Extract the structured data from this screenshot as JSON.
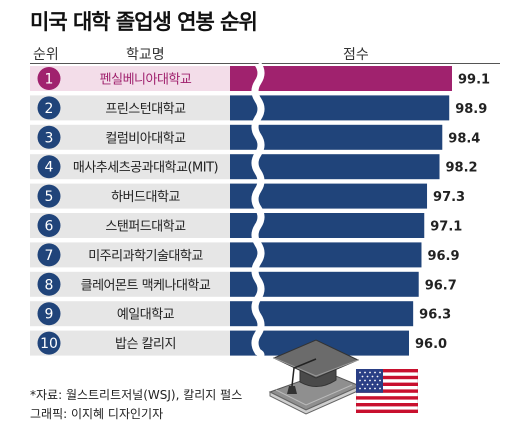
{
  "title": "미국 대학 졸업생 연봉 순위",
  "headers": {
    "rank": "순위",
    "school": "학교명",
    "score": "점수"
  },
  "colors": {
    "highlight": "#a0226e",
    "highlight_label_bg": "#f3dde9",
    "bar": "#20447a",
    "label_bg": "#e6e6e6",
    "rank_circle": "#20447a"
  },
  "chart_data": {
    "type": "bar",
    "orientation": "horizontal",
    "title": "미국 대학 졸업생 연봉 순위",
    "xlabel": "점수",
    "ylabel": "학교명",
    "axis_break": true,
    "categories": [
      "펜실베니아대학교",
      "프린스턴대학교",
      "컬럼비아대학교",
      "매사추세츠공과대학교(MIT)",
      "하버드대학교",
      "스탠퍼드대학교",
      "미주리과학기술대학교",
      "클레어몬트 맥케나대학교",
      "예일대학교",
      "밥슨 칼리지"
    ],
    "ranks": [
      1,
      2,
      3,
      4,
      5,
      6,
      7,
      8,
      9,
      10
    ],
    "values": [
      99.1,
      98.9,
      98.4,
      98.2,
      97.3,
      97.1,
      96.9,
      96.7,
      96.3,
      96.0
    ],
    "highlight_index": 0
  },
  "footer": {
    "source": "*자료: 월스트리트저널(WSJ), 칼리지 펄스",
    "credit": "그래픽: 이지혜 디자인기자"
  },
  "icons": {
    "cap": "graduation-cap-icon",
    "flag": "us-flag-icon"
  }
}
